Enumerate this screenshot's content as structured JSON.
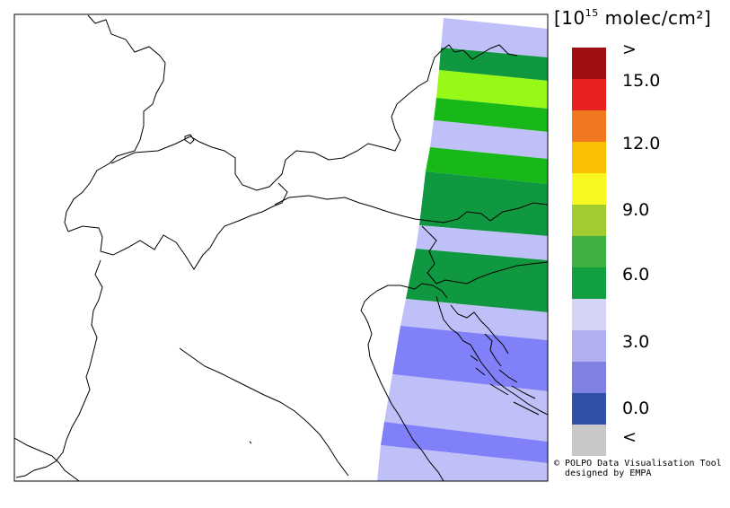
{
  "legend": {
    "unit_prefix": "[10",
    "unit_exponent": "15",
    "unit_suffix": " molec/cm²]",
    "ticks": [
      "&gt;",
      "15.0",
      "12.0",
      "9.0",
      "6.0",
      "3.0",
      "0.0",
      "&lt;"
    ],
    "colors": [
      "#a01010",
      "#e82020",
      "#f07820",
      "#f8c000",
      "#f8f820",
      "#a0cc30",
      "#40b040",
      "#10a040",
      "#d4d4f8",
      "#b0b0f0",
      "#8080e0",
      "#3050a8",
      "#c8c8c8"
    ]
  },
  "credit": {
    "line1": "© POLPO Data Visualisation Tool",
    "line2": "designed by EMPA"
  },
  "swath_palette": {
    "lavender": "#c0c0f8",
    "periwinkle": "#8080f8",
    "green": "#109840",
    "bright_green": "#18b818",
    "yellow_green": "#98f818"
  }
}
